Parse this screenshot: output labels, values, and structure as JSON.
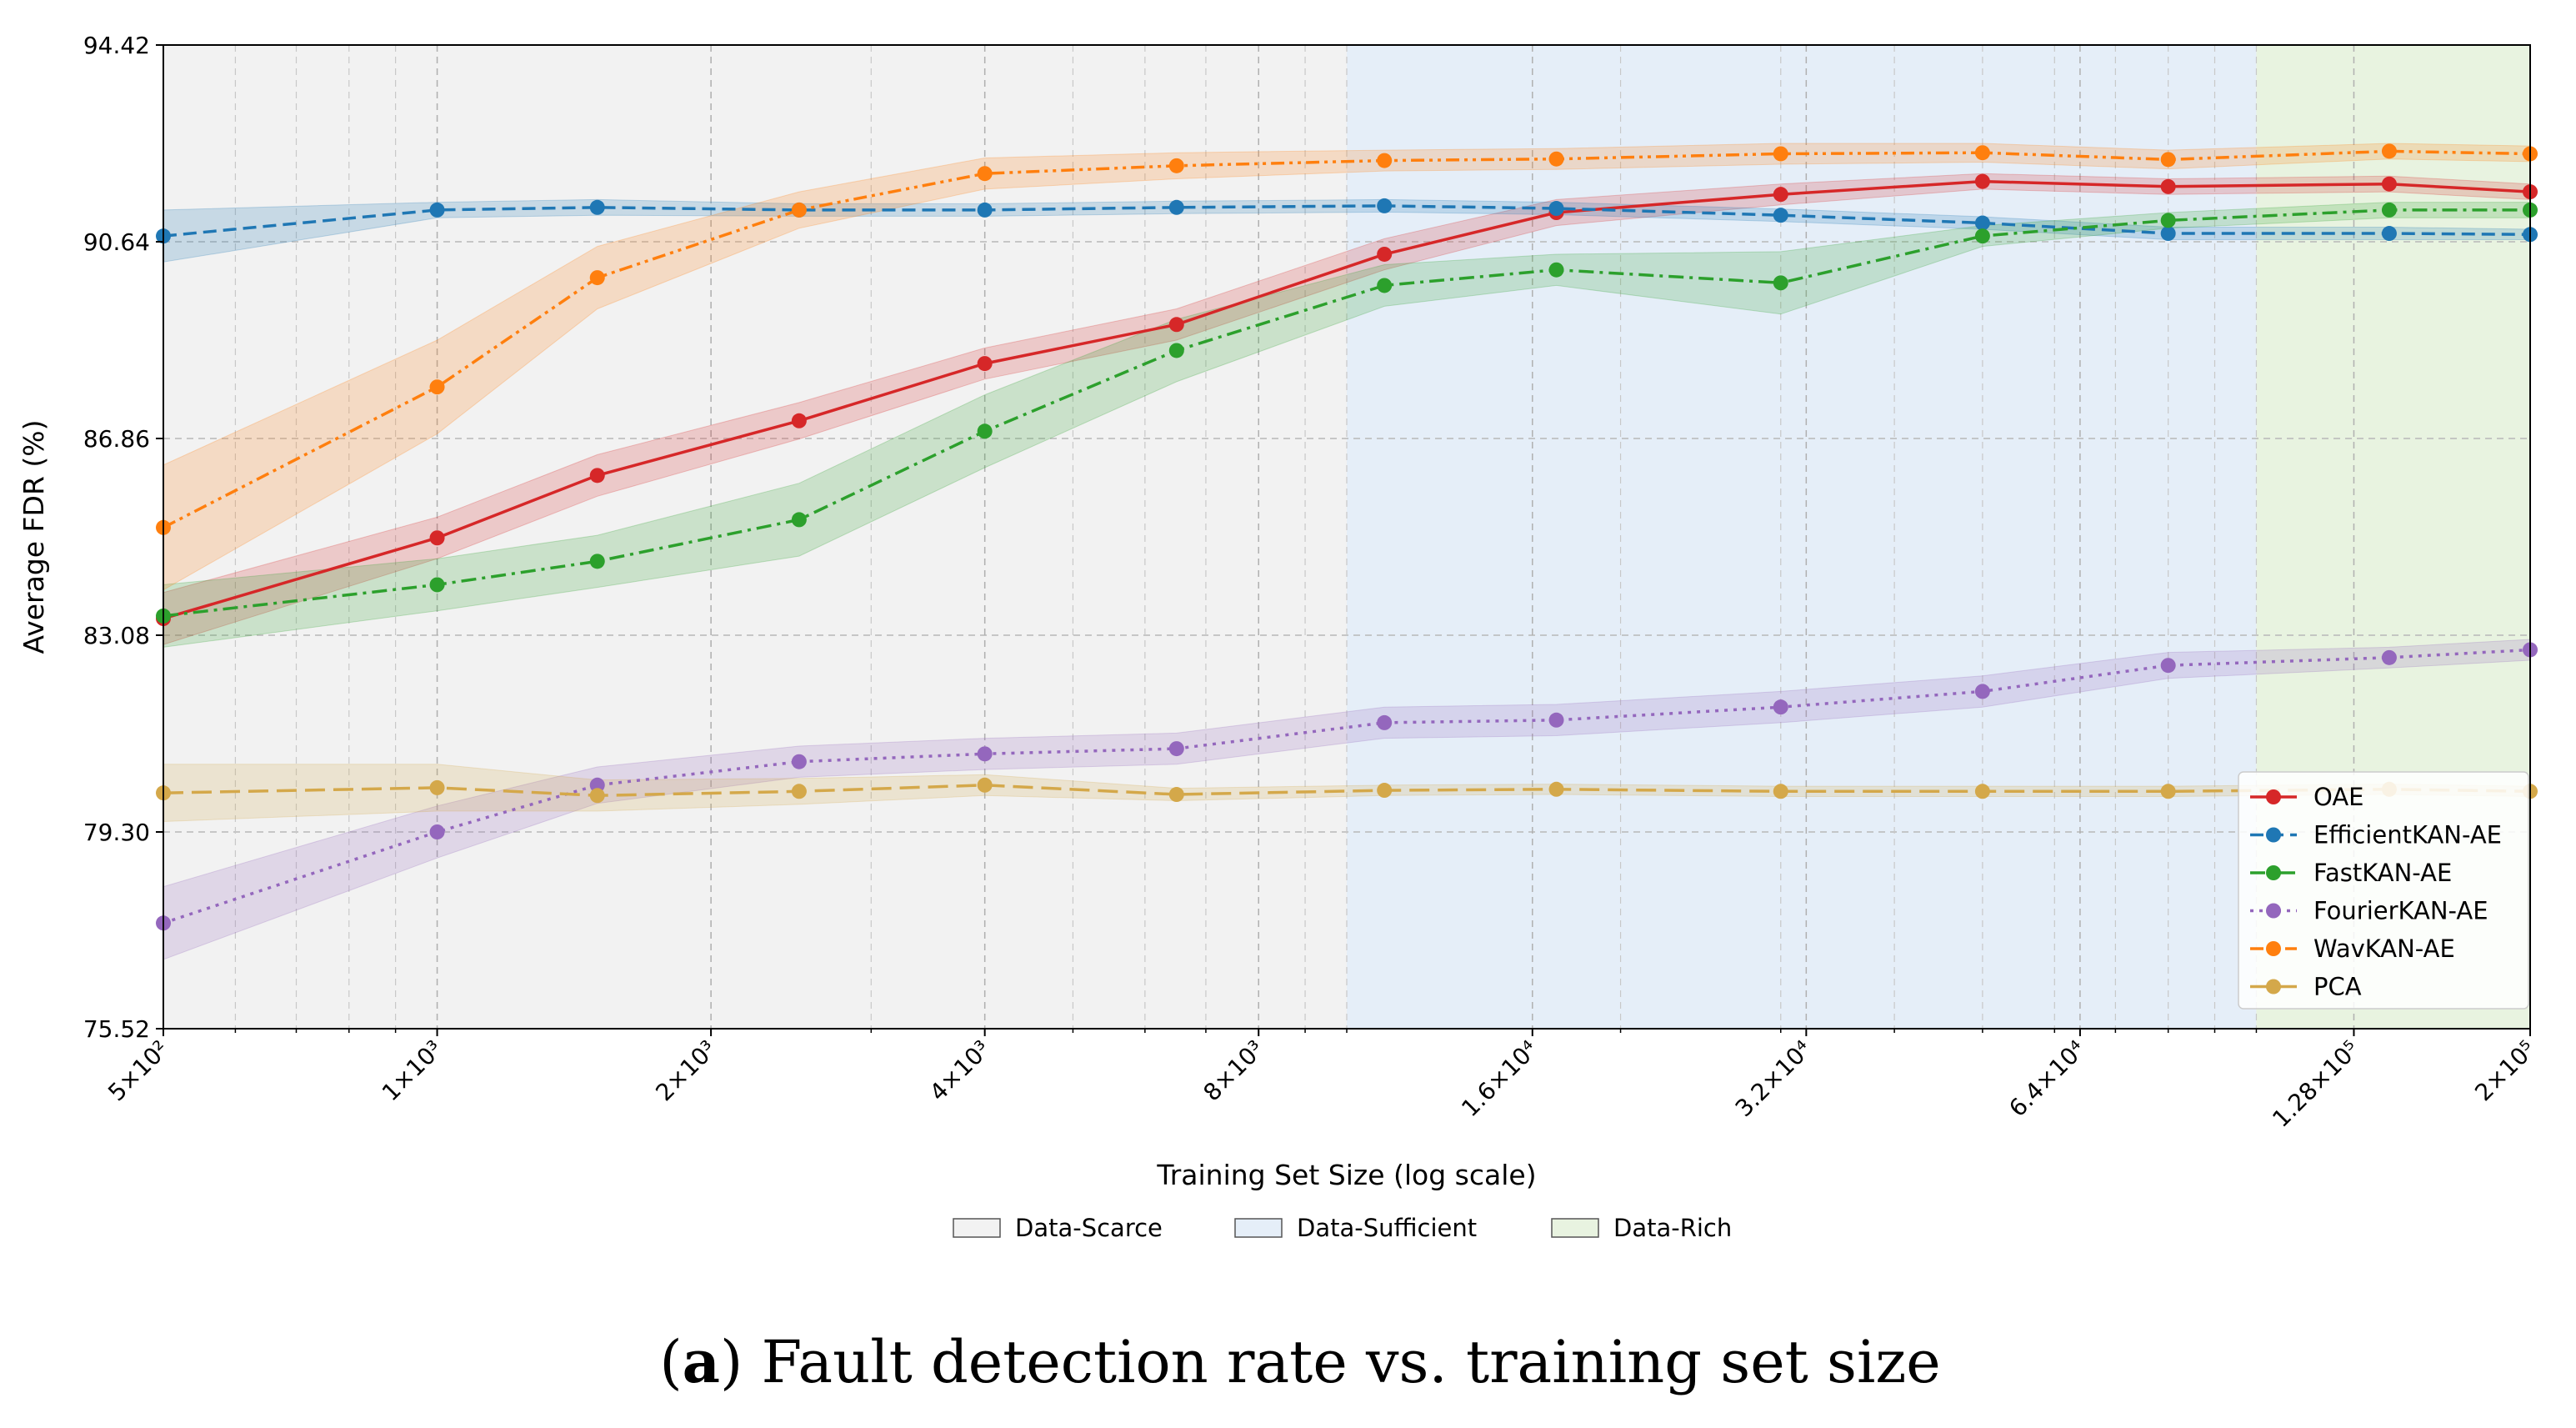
{
  "caption": {
    "label": "a",
    "text": "Fault detection rate vs. training set size"
  },
  "chart_data": {
    "type": "line",
    "xlabel": "Training Set Size (log scale)",
    "ylabel": "Average FDR (%)",
    "x_scale": "log",
    "xlim": [
      500,
      200000
    ],
    "ylim": [
      75.52,
      94.42
    ],
    "y_ticks": [
      75.52,
      79.3,
      83.08,
      86.86,
      90.64,
      94.42
    ],
    "y_tick_labels": [
      "75.52",
      "79.30",
      "83.08",
      "86.86",
      "90.64",
      "94.42"
    ],
    "x_ticks": [
      500,
      1000,
      2000,
      4000,
      8000,
      16000,
      32000,
      64000,
      128000,
      200000
    ],
    "x_tick_labels": [
      "5×10²",
      "1×10³",
      "2×10³",
      "4×10³",
      "8×10³",
      "1.6×10⁴",
      "3.2×10⁴",
      "6.4×10⁴",
      "1.28×10⁵",
      "2×10⁵"
    ],
    "grid": true,
    "legend_position": "lower-right",
    "regions": [
      {
        "name": "Data-Scarce",
        "x_from": 500,
        "x_to": 10000,
        "color": "#f2f2f2"
      },
      {
        "name": "Data-Sufficient",
        "x_from": 10000,
        "x_to": 100000,
        "color": "#e5eef8"
      },
      {
        "name": "Data-Rich",
        "x_from": 100000,
        "x_to": 200000,
        "color": "#e8f3e0"
      }
    ],
    "x": [
      500,
      1000,
      1500,
      2500,
      4000,
      6500,
      11000,
      17000,
      30000,
      50000,
      80000,
      140000,
      200000
    ],
    "series": [
      {
        "name": "OAE",
        "color": "#d62728",
        "dash": "solid",
        "values": [
          83.4,
          84.95,
          86.15,
          87.2,
          88.3,
          89.05,
          90.4,
          91.2,
          91.55,
          91.8,
          91.7,
          91.75,
          91.6
        ],
        "band": [
          0.5,
          0.4,
          0.4,
          0.35,
          0.3,
          0.3,
          0.3,
          0.25,
          0.2,
          0.15,
          0.15,
          0.15,
          0.15
        ]
      },
      {
        "name": "EfficientKAN-AE",
        "color": "#1f77b4",
        "dash": "dashed",
        "values": [
          90.75,
          91.25,
          91.3,
          91.25,
          91.25,
          91.3,
          91.33,
          91.28,
          91.15,
          91.0,
          90.8,
          90.8,
          90.78
        ],
        "band": [
          0.5,
          0.15,
          0.15,
          0.12,
          0.12,
          0.12,
          0.12,
          0.12,
          0.12,
          0.12,
          0.12,
          0.12,
          0.1
        ]
      },
      {
        "name": "FastKAN-AE",
        "color": "#2ca02c",
        "dash": "dashdot",
        "values": [
          83.45,
          84.05,
          84.5,
          85.3,
          87.0,
          88.55,
          89.8,
          90.1,
          89.85,
          90.75,
          91.05,
          91.25,
          91.25
        ],
        "band": [
          0.6,
          0.5,
          0.5,
          0.7,
          0.7,
          0.6,
          0.4,
          0.3,
          0.6,
          0.2,
          0.15,
          0.15,
          0.15
        ]
      },
      {
        "name": "FourierKAN-AE",
        "color": "#9467bd",
        "dash": "dotted",
        "values": [
          77.55,
          79.3,
          80.2,
          80.65,
          80.8,
          80.9,
          81.4,
          81.45,
          81.7,
          82.0,
          82.5,
          82.65,
          82.8
        ],
        "band": [
          0.7,
          0.5,
          0.35,
          0.3,
          0.3,
          0.3,
          0.3,
          0.3,
          0.3,
          0.3,
          0.25,
          0.2,
          0.2
        ]
      },
      {
        "name": "WavKAN-AE",
        "color": "#ff7f0e",
        "dash": "dashdotdot",
        "values": [
          85.15,
          87.85,
          89.95,
          91.25,
          91.95,
          92.1,
          92.2,
          92.23,
          92.33,
          92.35,
          92.22,
          92.38,
          92.33
        ],
        "band": [
          1.2,
          0.9,
          0.6,
          0.35,
          0.3,
          0.25,
          0.2,
          0.2,
          0.2,
          0.18,
          0.18,
          0.15,
          0.15
        ]
      },
      {
        "name": "PCA",
        "color": "#d4a84a",
        "dash": "longdash",
        "values": [
          80.05,
          80.15,
          80.0,
          80.08,
          80.2,
          80.02,
          80.1,
          80.12,
          80.08,
          80.08,
          80.08,
          80.12,
          80.08
        ],
        "band": [
          0.55,
          0.45,
          0.3,
          0.25,
          0.2,
          0.12,
          0.1,
          0.1,
          0.1,
          0.1,
          0.1,
          0.1,
          0.1
        ]
      }
    ]
  }
}
